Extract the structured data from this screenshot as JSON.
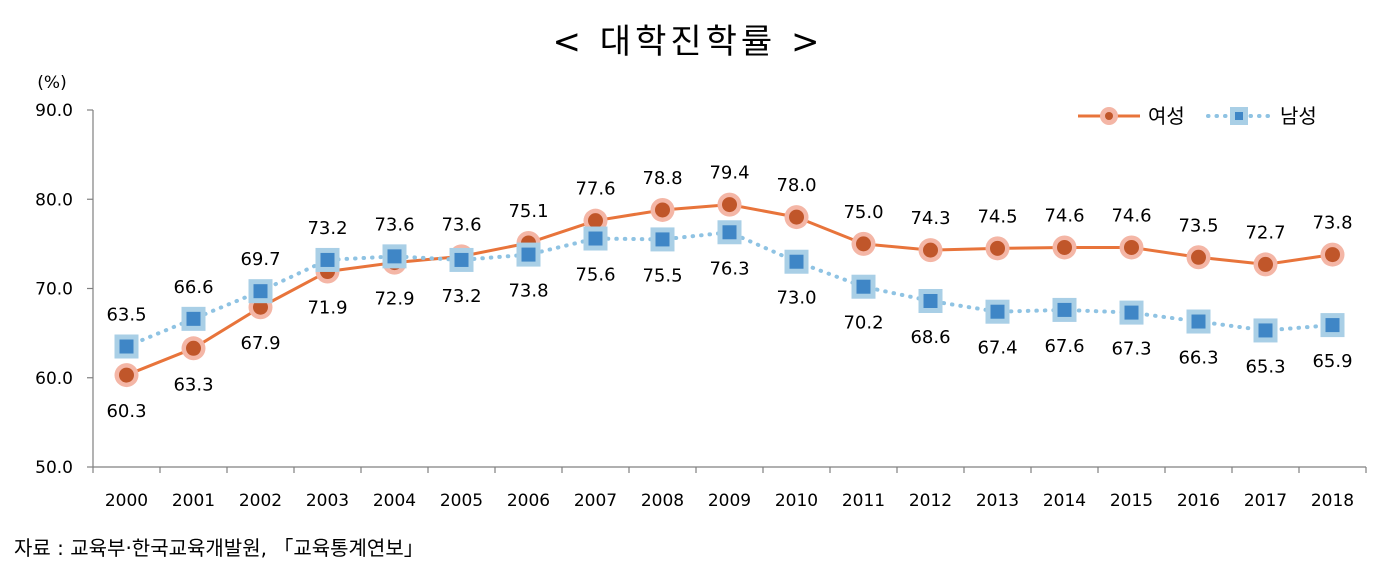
{
  "title": "< 대학진학률 >",
  "source": "자료 : 교육부·한국교육개발원, 「교육통계연보」",
  "chart_data": {
    "type": "line",
    "title": "< 대학진학률 >",
    "unit_label": "(%)",
    "ylim": [
      50,
      90
    ],
    "yticks": [
      "50.0",
      "60.0",
      "70.0",
      "80.0",
      "90.0"
    ],
    "ytick_values": [
      50,
      60,
      70,
      80,
      90
    ],
    "grid": false,
    "legend": "top-right",
    "categories": [
      "2000",
      "2001",
      "2002",
      "2003",
      "2004",
      "2005",
      "2006",
      "2007",
      "2008",
      "2009",
      "2010",
      "2011",
      "2012",
      "2013",
      "2014",
      "2015",
      "2016",
      "2017",
      "2018"
    ],
    "series": [
      {
        "name": "여성",
        "color": "#e8743b",
        "marker_color": "#c0562a",
        "halo_color": "#f4b6a6",
        "style": "solid",
        "values": [
          60.3,
          63.3,
          67.9,
          71.9,
          72.9,
          73.6,
          75.1,
          77.6,
          78.8,
          79.4,
          78.0,
          75.0,
          74.3,
          74.5,
          74.6,
          74.6,
          73.5,
          72.7,
          73.8
        ],
        "labels": [
          "60.3",
          "63.3",
          "67.9",
          "71.9",
          "72.9",
          "73.6",
          "75.1",
          "77.6",
          "78.8",
          "79.4",
          "78.0",
          "75.0",
          "74.3",
          "74.5",
          "74.6",
          "74.6",
          "73.5",
          "72.7",
          "73.8"
        ]
      },
      {
        "name": "남성",
        "color": "#8fc3e3",
        "marker_color": "#3f86c6",
        "halo_color": "#a9cfe6",
        "style": "dotted",
        "values": [
          63.5,
          66.6,
          69.7,
          73.2,
          73.6,
          73.2,
          73.8,
          75.6,
          75.5,
          76.3,
          73.0,
          70.2,
          68.6,
          67.4,
          67.6,
          67.3,
          66.3,
          65.3,
          65.9
        ],
        "labels": [
          "63.5",
          "66.6",
          "69.7",
          "73.2",
          "73.6",
          "73.2",
          "73.8",
          "75.6",
          "75.5",
          "76.3",
          "73.0",
          "70.2",
          "68.6",
          "67.4",
          "67.6",
          "67.3",
          "66.3",
          "65.3",
          "65.9"
        ]
      }
    ]
  }
}
